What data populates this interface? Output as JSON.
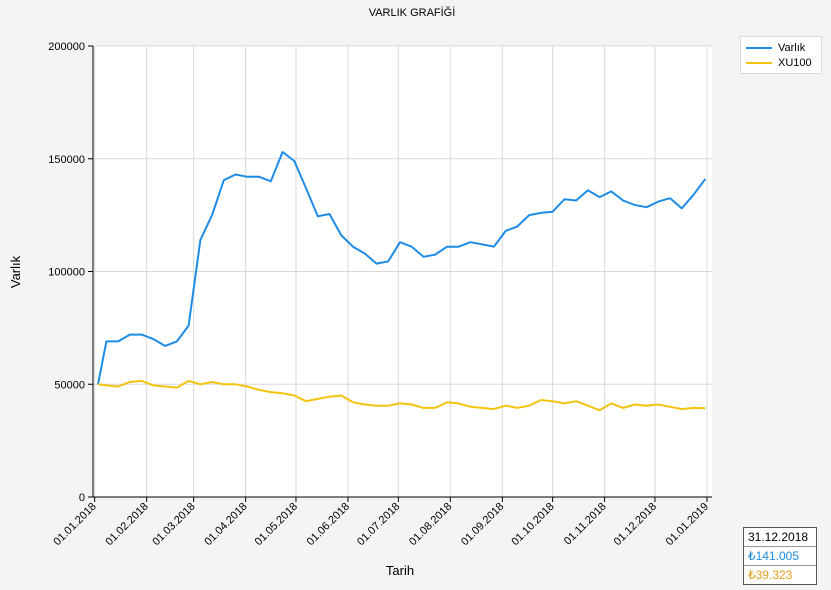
{
  "chart_data": {
    "type": "line",
    "title": "VARLIK GRAFİĞİ",
    "xlabel": "Tarih",
    "ylabel": "Varlık",
    "ylim": [
      0,
      200000
    ],
    "xlim": [
      "2017-12-31",
      "2019-01-04"
    ],
    "y_ticks": [
      0,
      50000,
      100000,
      150000,
      200000
    ],
    "y_tick_labels": [
      "0",
      "50000",
      "100000",
      "150000",
      "200000"
    ],
    "x_ticks": [
      "2018-01-01",
      "2018-02-01",
      "2018-03-01",
      "2018-04-01",
      "2018-05-01",
      "2018-06-01",
      "2018-07-01",
      "2018-08-01",
      "2018-09-01",
      "2018-10-01",
      "2018-11-01",
      "2018-12-01",
      "2019-01-01"
    ],
    "x_tick_labels": [
      "01.01.2018",
      "01.02.2018",
      "01.03.2018",
      "01.04.2018",
      "01.05.2018",
      "01.06.2018",
      "01.07.2018",
      "01.08.2018",
      "01.09.2018",
      "01.10.2018",
      "01.11.2018",
      "01.12.2018",
      "01.01.2019"
    ],
    "grid": true,
    "legend_position": "top-right",
    "series": [
      {
        "name": "Varlık",
        "color": "#1e8ce6",
        "points": [
          [
            "2018-01-03",
            50000
          ],
          [
            "2018-01-08",
            69000
          ],
          [
            "2018-01-15",
            69000
          ],
          [
            "2018-01-22",
            72000
          ],
          [
            "2018-01-29",
            72000
          ],
          [
            "2018-02-05",
            70000
          ],
          [
            "2018-02-12",
            67000
          ],
          [
            "2018-02-19",
            69000
          ],
          [
            "2018-02-26",
            76000
          ],
          [
            "2018-03-05",
            114000
          ],
          [
            "2018-03-12",
            125000
          ],
          [
            "2018-03-19",
            140500
          ],
          [
            "2018-03-26",
            143000
          ],
          [
            "2018-04-02",
            142000
          ],
          [
            "2018-04-09",
            142000
          ],
          [
            "2018-04-16",
            140000
          ],
          [
            "2018-04-23",
            153000
          ],
          [
            "2018-04-30",
            149000
          ],
          [
            "2018-05-07",
            137000
          ],
          [
            "2018-05-14",
            124500
          ],
          [
            "2018-05-21",
            125500
          ],
          [
            "2018-05-28",
            116000
          ],
          [
            "2018-06-04",
            111000
          ],
          [
            "2018-06-11",
            108000
          ],
          [
            "2018-06-18",
            103500
          ],
          [
            "2018-06-25",
            104500
          ],
          [
            "2018-07-02",
            113000
          ],
          [
            "2018-07-09",
            111000
          ],
          [
            "2018-07-16",
            106500
          ],
          [
            "2018-07-23",
            107500
          ],
          [
            "2018-07-30",
            111000
          ],
          [
            "2018-08-06",
            111000
          ],
          [
            "2018-08-13",
            113000
          ],
          [
            "2018-08-20",
            112000
          ],
          [
            "2018-08-27",
            111000
          ],
          [
            "2018-09-03",
            118000
          ],
          [
            "2018-09-10",
            120000
          ],
          [
            "2018-09-17",
            125000
          ],
          [
            "2018-09-24",
            126000
          ],
          [
            "2018-10-01",
            126500
          ],
          [
            "2018-10-08",
            132000
          ],
          [
            "2018-10-15",
            131500
          ],
          [
            "2018-10-22",
            136000
          ],
          [
            "2018-10-29",
            133000
          ],
          [
            "2018-11-05",
            135500
          ],
          [
            "2018-11-12",
            131500
          ],
          [
            "2018-11-19",
            129500
          ],
          [
            "2018-11-26",
            128500
          ],
          [
            "2018-12-03",
            131000
          ],
          [
            "2018-12-10",
            132500
          ],
          [
            "2018-12-17",
            128000
          ],
          [
            "2018-12-24",
            134000
          ],
          [
            "2018-12-31",
            141005
          ]
        ]
      },
      {
        "name": "XU100",
        "color": "#f2c40f",
        "points": [
          [
            "2018-01-03",
            50000
          ],
          [
            "2018-01-08",
            49500
          ],
          [
            "2018-01-15",
            49000
          ],
          [
            "2018-01-22",
            51000
          ],
          [
            "2018-01-29",
            51500
          ],
          [
            "2018-02-05",
            49500
          ],
          [
            "2018-02-12",
            49000
          ],
          [
            "2018-02-19",
            48500
          ],
          [
            "2018-02-26",
            51500
          ],
          [
            "2018-03-05",
            50000
          ],
          [
            "2018-03-12",
            51000
          ],
          [
            "2018-03-19",
            50000
          ],
          [
            "2018-03-26",
            50000
          ],
          [
            "2018-04-02",
            49000
          ],
          [
            "2018-04-09",
            47500
          ],
          [
            "2018-04-16",
            46500
          ],
          [
            "2018-04-23",
            46000
          ],
          [
            "2018-04-30",
            45000
          ],
          [
            "2018-05-07",
            42500
          ],
          [
            "2018-05-14",
            43500
          ],
          [
            "2018-05-21",
            44500
          ],
          [
            "2018-05-28",
            45000
          ],
          [
            "2018-06-04",
            42000
          ],
          [
            "2018-06-11",
            41000
          ],
          [
            "2018-06-18",
            40500
          ],
          [
            "2018-06-25",
            40500
          ],
          [
            "2018-07-02",
            41500
          ],
          [
            "2018-07-09",
            41000
          ],
          [
            "2018-07-16",
            39500
          ],
          [
            "2018-07-23",
            39500
          ],
          [
            "2018-07-30",
            42000
          ],
          [
            "2018-08-06",
            41500
          ],
          [
            "2018-08-13",
            40000
          ],
          [
            "2018-08-20",
            39500
          ],
          [
            "2018-08-27",
            39000
          ],
          [
            "2018-09-03",
            40500
          ],
          [
            "2018-09-10",
            39500
          ],
          [
            "2018-09-17",
            40500
          ],
          [
            "2018-09-24",
            43000
          ],
          [
            "2018-10-01",
            42500
          ],
          [
            "2018-10-08",
            41500
          ],
          [
            "2018-10-15",
            42500
          ],
          [
            "2018-10-22",
            40500
          ],
          [
            "2018-10-29",
            38500
          ],
          [
            "2018-11-05",
            41500
          ],
          [
            "2018-11-12",
            39500
          ],
          [
            "2018-11-19",
            41000
          ],
          [
            "2018-11-26",
            40500
          ],
          [
            "2018-12-03",
            41000
          ],
          [
            "2018-12-10",
            40000
          ],
          [
            "2018-12-17",
            39000
          ],
          [
            "2018-12-24",
            39500
          ],
          [
            "2018-12-31",
            39323
          ]
        ]
      }
    ]
  },
  "info_box": {
    "date": "31.12.2018",
    "value_1": "₺141.005",
    "value_1_color": "#1e8ce6",
    "value_2": "₺39.323",
    "value_2_color": "#e8a020"
  }
}
